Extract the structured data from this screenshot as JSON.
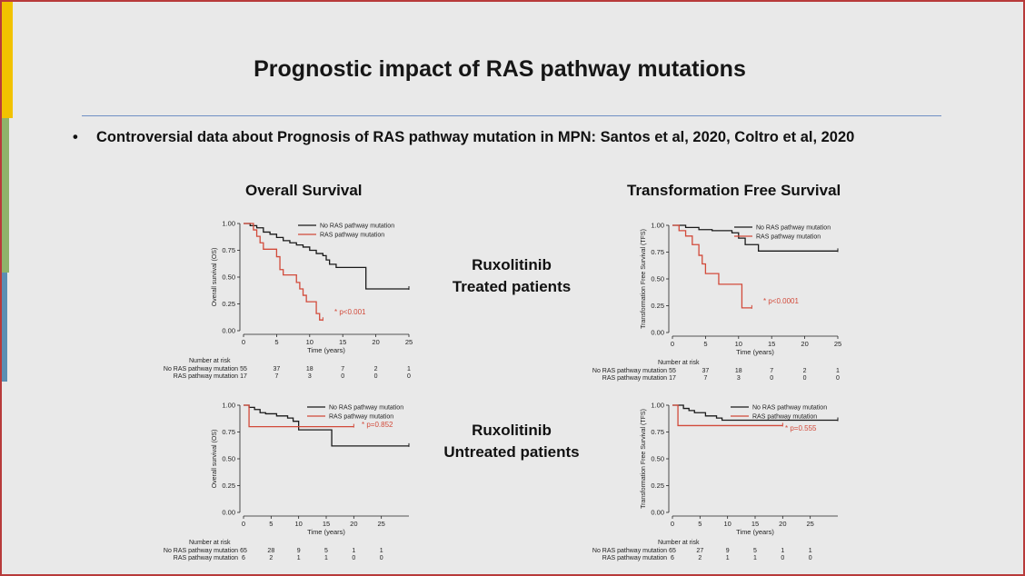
{
  "slide": {
    "title": "Prognostic impact of RAS pathway mutations",
    "bullet_mark": "•",
    "bullet": "Controversial data about Prognosis of RAS pathway mutation in MPN: Santos et al, 2020, Coltro et al, 2020",
    "left_heading": "Overall Survival",
    "right_heading": "Transformation Free Survival",
    "group1_line1": "Ruxolitinib",
    "group1_line2": "Treated patients",
    "group2_line1": "Ruxolitinib",
    "group2_line2": "Untreated patients"
  },
  "colors": {
    "no_ras": "#1a1a1a",
    "ras": "#d24a3a",
    "pvalue": "#d24a3a",
    "rule": "#6f8fc4",
    "border": "#b83a3a"
  },
  "chart_data": [
    {
      "type": "line",
      "ylabel": "Overall survival (OS)",
      "xlabel": "Time (years)",
      "x_ticks": [
        0,
        5,
        10,
        15,
        20,
        25
      ],
      "y_ticks": [
        "0.00",
        "0.25",
        "0.50",
        "0.75",
        "1.00"
      ],
      "xlim": [
        0,
        25
      ],
      "ylim": [
        0,
        1
      ],
      "pvalue": "* p<0.001",
      "legend": [
        "No RAS pathway mutation",
        "RAS pathway mutation"
      ],
      "series": [
        {
          "name": "No RAS pathway mutation",
          "steps": [
            [
              0,
              1.0
            ],
            [
              1,
              0.98
            ],
            [
              2,
              0.96
            ],
            [
              3,
              0.92
            ],
            [
              4,
              0.9
            ],
            [
              5,
              0.87
            ],
            [
              6,
              0.84
            ],
            [
              7,
              0.82
            ],
            [
              8,
              0.8
            ],
            [
              9,
              0.78
            ],
            [
              10,
              0.75
            ],
            [
              11,
              0.72
            ],
            [
              12,
              0.7
            ],
            [
              12.5,
              0.66
            ],
            [
              13,
              0.62
            ],
            [
              14,
              0.59
            ],
            [
              18.5,
              0.39
            ],
            [
              25,
              0.39
            ]
          ]
        },
        {
          "name": "RAS pathway mutation",
          "steps": [
            [
              0,
              1.0
            ],
            [
              1.5,
              0.94
            ],
            [
              2,
              0.88
            ],
            [
              2.5,
              0.82
            ],
            [
              3,
              0.76
            ],
            [
              5,
              0.69
            ],
            [
              5.5,
              0.57
            ],
            [
              6,
              0.52
            ],
            [
              8,
              0.45
            ],
            [
              8.5,
              0.39
            ],
            [
              9,
              0.33
            ],
            [
              9.5,
              0.27
            ],
            [
              11,
              0.16
            ],
            [
              11.5,
              0.1
            ],
            [
              12,
              0.1
            ]
          ]
        }
      ],
      "risk_title": "Number at risk",
      "risk_labels": [
        "No RAS pathway mutation",
        "RAS pathway mutation"
      ],
      "risk_rows": [
        [
          "55",
          "37",
          "18",
          "7",
          "2",
          "1"
        ],
        [
          "17",
          "7",
          "3",
          "0",
          "0",
          "0"
        ]
      ]
    },
    {
      "type": "line",
      "ylabel": "Transformation Free Survival (TFS)",
      "xlabel": "Time (years)",
      "x_ticks": [
        0,
        5,
        10,
        15,
        20,
        25
      ],
      "y_ticks": [
        "0.00",
        "0.25",
        "0.50",
        "0.75",
        "1.00"
      ],
      "xlim": [
        0,
        25
      ],
      "ylim": [
        0,
        1
      ],
      "pvalue": "* p<0.0001",
      "legend": [
        "No RAS pathway mutation",
        "RAS pathway mutation"
      ],
      "series": [
        {
          "name": "No RAS pathway mutation",
          "steps": [
            [
              0,
              1.0
            ],
            [
              2,
              0.98
            ],
            [
              4,
              0.96
            ],
            [
              6,
              0.95
            ],
            [
              9,
              0.93
            ],
            [
              10,
              0.88
            ],
            [
              11,
              0.82
            ],
            [
              13,
              0.76
            ],
            [
              25,
              0.76
            ]
          ]
        },
        {
          "name": "RAS pathway mutation",
          "steps": [
            [
              0,
              1.0
            ],
            [
              1,
              0.95
            ],
            [
              2,
              0.9
            ],
            [
              3,
              0.82
            ],
            [
              4,
              0.72
            ],
            [
              4.5,
              0.64
            ],
            [
              5,
              0.55
            ],
            [
              7,
              0.45
            ],
            [
              10.5,
              0.23
            ],
            [
              12,
              0.23
            ]
          ]
        }
      ],
      "risk_title": "Number at risk",
      "risk_labels": [
        "No RAS pathway mutation",
        "RAS pathway mutation"
      ],
      "risk_rows": [
        [
          "55",
          "37",
          "18",
          "7",
          "2",
          "1"
        ],
        [
          "17",
          "7",
          "3",
          "0",
          "0",
          "0"
        ]
      ]
    },
    {
      "type": "line",
      "ylabel": "Overall survival (OS)",
      "xlabel": "Time (years)",
      "x_ticks": [
        0,
        5,
        10,
        15,
        20,
        25
      ],
      "y_ticks": [
        "0.00",
        "0.25",
        "0.50",
        "0.75",
        "1.00"
      ],
      "xlim": [
        0,
        30
      ],
      "ylim": [
        0,
        1
      ],
      "pvalue": "* p=0.852",
      "legend": [
        "No RAS pathway mutation",
        "RAS pathway mutation"
      ],
      "series": [
        {
          "name": "No RAS pathway mutation",
          "steps": [
            [
              0,
              1.0
            ],
            [
              1,
              0.98
            ],
            [
              2,
              0.96
            ],
            [
              3,
              0.93
            ],
            [
              4,
              0.92
            ],
            [
              6,
              0.9
            ],
            [
              8,
              0.88
            ],
            [
              9,
              0.85
            ],
            [
              10,
              0.77
            ],
            [
              16,
              0.62
            ],
            [
              30,
              0.62
            ]
          ]
        },
        {
          "name": "RAS pathway mutation",
          "steps": [
            [
              0,
              1.0
            ],
            [
              1,
              0.8
            ],
            [
              20,
              0.8
            ]
          ]
        }
      ],
      "risk_title": "Number at risk",
      "risk_labels": [
        "No RAS pathway mutation",
        "RAS pathway mutation"
      ],
      "risk_rows": [
        [
          "65",
          "28",
          "9",
          "5",
          "1",
          "1"
        ],
        [
          "6",
          "2",
          "1",
          "1",
          "0",
          "0"
        ]
      ]
    },
    {
      "type": "line",
      "ylabel": "Transformation Free Survival (TFS)",
      "xlabel": "Time (years)",
      "x_ticks": [
        0,
        5,
        10,
        15,
        20,
        25
      ],
      "y_ticks": [
        "0.00",
        "0.25",
        "0.50",
        "0.75",
        "1.00"
      ],
      "xlim": [
        0,
        30
      ],
      "ylim": [
        0,
        1
      ],
      "pvalue": "* p=0.555",
      "legend": [
        "No RAS pathway mutation",
        "RAS pathway mutation"
      ],
      "series": [
        {
          "name": "No RAS pathway mutation",
          "steps": [
            [
              0,
              1.0
            ],
            [
              2,
              0.97
            ],
            [
              3,
              0.95
            ],
            [
              4,
              0.93
            ],
            [
              6,
              0.9
            ],
            [
              8,
              0.88
            ],
            [
              9,
              0.86
            ],
            [
              30,
              0.86
            ]
          ]
        },
        {
          "name": "RAS pathway mutation",
          "steps": [
            [
              0,
              1.0
            ],
            [
              1,
              0.81
            ],
            [
              20,
              0.81
            ]
          ]
        }
      ],
      "risk_title": "Number at risk",
      "risk_labels": [
        "No RAS pathway mutation",
        "RAS pathway mutation"
      ],
      "risk_rows": [
        [
          "65",
          "27",
          "9",
          "5",
          "1",
          "1"
        ],
        [
          "6",
          "2",
          "1",
          "1",
          "0",
          "0"
        ]
      ]
    }
  ]
}
